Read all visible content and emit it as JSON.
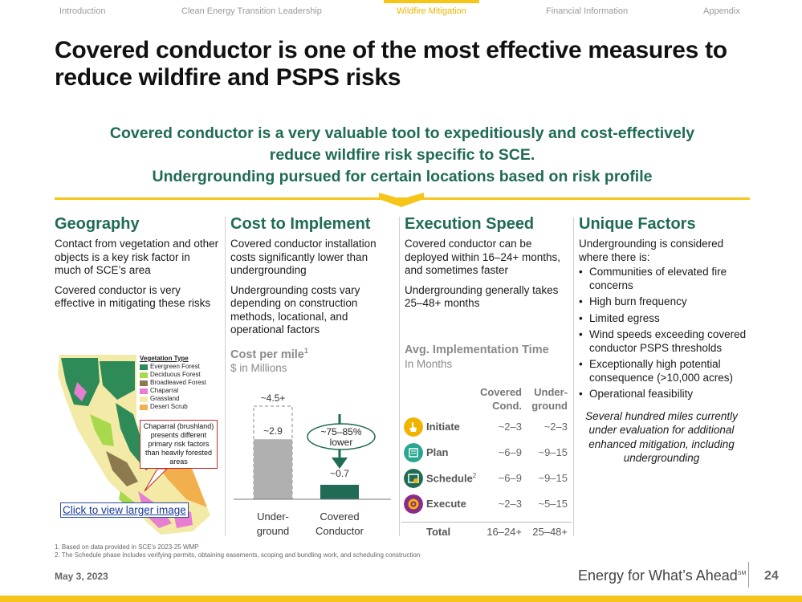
{
  "nav": {
    "tabs": [
      {
        "label": "Introduction"
      },
      {
        "label": "Clean Energy Transition Leadership"
      },
      {
        "label": "Wildfire Mitigation"
      },
      {
        "label": "Financial Information"
      },
      {
        "label": "Appendix"
      }
    ],
    "active_tab": "Wildfire Mitigation"
  },
  "title": "Covered conductor is one of the most effective measures to reduce wildfire and PSPS risks",
  "banner": {
    "line1": "Covered conductor is a very valuable tool to expeditiously and cost-effectively",
    "line2": "reduce wildfire risk specific to SCE.",
    "line3": "Undergrounding pursued for certain locations based on risk profile"
  },
  "geography": {
    "heading": "Geography",
    "p1": "Contact from vegetation and other objects is a key risk factor in much of SCE’s area",
    "p2": "Covered conductor is very effective in mitigating these risks",
    "legend": {
      "title": "Vegetation Type",
      "items": [
        {
          "label": "Evergreen Forest",
          "color": "#2e8b57"
        },
        {
          "label": "Deciduous Forest",
          "color": "#a8d94c"
        },
        {
          "label": "Broadleaved Forest",
          "color": "#8c7a4e"
        },
        {
          "label": "Chaparral",
          "color": "#e67fd1"
        },
        {
          "label": "Grassland",
          "color": "#f3eaa7"
        },
        {
          "label": "Desert Scrub",
          "color": "#f2b04d"
        }
      ]
    },
    "callout": "Chaparral (brushland) presents different primary risk factors than heavily forested areas",
    "link": "Click to view larger image"
  },
  "cost": {
    "heading": "Cost to Implement",
    "p1": "Covered conductor installation costs significantly lower than undergrounding",
    "p2": "Undergrounding costs vary depending on construction methods, locational, and operational factors",
    "subhead": "Cost per mile",
    "subhead_note": "1",
    "unit": "$ in Millions",
    "chart_data": {
      "type": "bar",
      "categories": [
        "Under-ground",
        "Covered Conductor"
      ],
      "values": [
        2.9,
        0.7
      ],
      "range_top": 4.5,
      "data_labels": [
        "~2.9",
        "~0.7"
      ],
      "range_label": "~4.5+",
      "annotation": "~75–85% lower",
      "colors": [
        "#b0b0b0",
        "#1f6b55"
      ],
      "cat_line1": [
        "Under-",
        "Covered"
      ],
      "cat_line2": [
        "ground",
        "Conductor"
      ]
    }
  },
  "execution": {
    "heading": "Execution Speed",
    "p1": "Covered conductor can be deployed within 16–24+ months, and sometimes faster",
    "p2": "Undergrounding generally takes 25–48+ months",
    "subhead": "Avg. Implementation Time",
    "unit": "In Months",
    "col1_line1": "Covered",
    "col1_line2": "Cond.",
    "col2_line1": "Under-",
    "col2_line2": "ground",
    "rows": [
      {
        "label": "Initiate",
        "sup": "",
        "covered": "~2–3",
        "underground": "~2–3",
        "icon": "hand-pointer-icon",
        "color": "#f0b400"
      },
      {
        "label": "Plan",
        "sup": "",
        "covered": "~6–9",
        "underground": "~9–15",
        "icon": "plan-icon",
        "color": "#2aa58f"
      },
      {
        "label": "Schedule",
        "sup": "2",
        "covered": "~6–9",
        "underground": "~9–15",
        "icon": "schedule-icon",
        "color": "#1f6b55"
      },
      {
        "label": "Execute",
        "sup": "",
        "covered": "~2–3",
        "underground": "~5–15",
        "icon": "gear-icon",
        "color": "#8b2a8b"
      }
    ],
    "total": {
      "label": "Total",
      "covered": "16–24+",
      "underground": "25–48+"
    }
  },
  "unique": {
    "heading": "Unique Factors",
    "intro": "Undergrounding is considered where there is:",
    "items": [
      "Communities of elevated fire concerns",
      "High burn frequency",
      "Limited egress",
      "Wind speeds exceeding covered conductor PSPS thresholds",
      "Exceptionally high potential consequence (>10,000 acres)",
      "Operational feasibility"
    ],
    "note": "Several hundred miles currently under evaluation for additional enhanced mitigation, including undergrounding"
  },
  "footnotes": {
    "f1": "1.  Based on data provided in SCE’s 2023-25 WMP",
    "f2": "2.  The Schedule phase includes verifying permits, obtaining easements, scoping and bundling work, and scheduling construction"
  },
  "footer": {
    "date": "May 3, 2023",
    "brand": "Energy for What’s Ahead",
    "brand_mark": "SM",
    "page": "24"
  },
  "colors": {
    "accent_yellow": "#f5c518",
    "heading_green": "#1f6b55"
  }
}
